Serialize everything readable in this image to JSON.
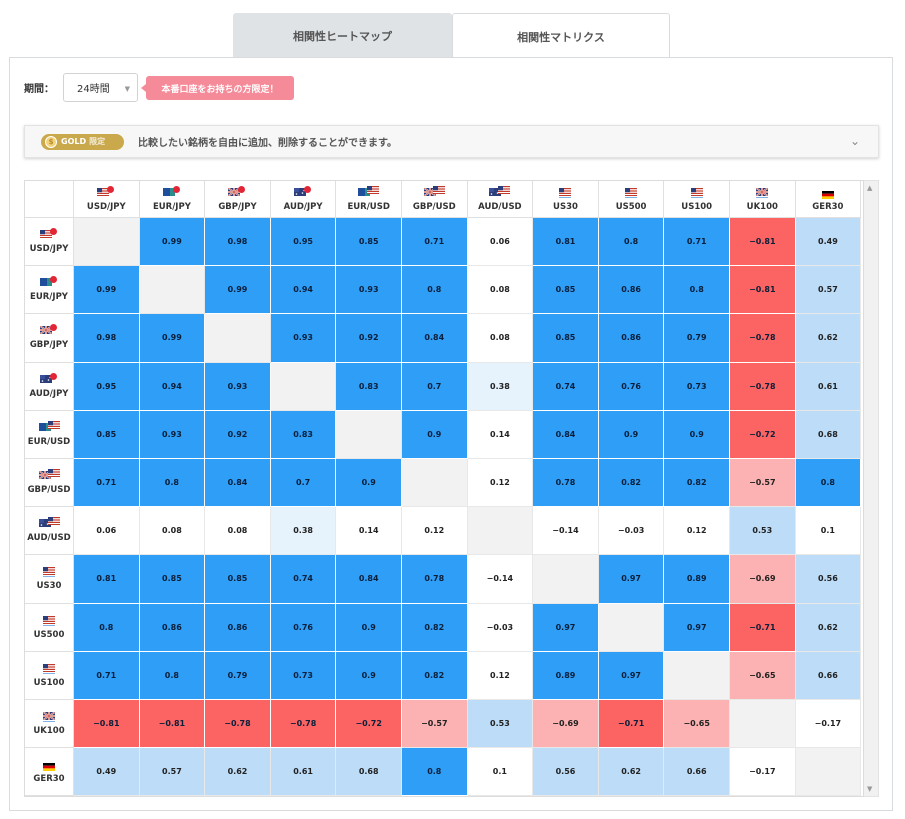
{
  "tabs": [
    {
      "label": "相関性ヒートマップ",
      "active": false
    },
    {
      "label": "相関性マトリクス",
      "active": true
    }
  ],
  "period": {
    "label": "期間：",
    "value": "24時間"
  },
  "promo": {
    "label": "本番口座をお持ちの方限定！"
  },
  "gold": {
    "badge": "GOLD",
    "badge_sub": "限定",
    "text": "比較したい銘柄を自由に追加、削除することができます。"
  },
  "colors": {
    "strong_pos": "#2f9ef7",
    "weak_pos": "#bcdcf8",
    "faint_pos": "#e6f2fc",
    "strong_neg": "#fc6464",
    "weak_neg": "#fcb2b2",
    "neutral": "#ffffff",
    "diag": "#f2f2f2"
  },
  "symbols": [
    {
      "label": "USD/JPY",
      "flag": "us-jp"
    },
    {
      "label": "EUR/JPY",
      "flag": "eu-jp"
    },
    {
      "label": "GBP/JPY",
      "flag": "uk-jp"
    },
    {
      "label": "AUD/JPY",
      "flag": "au-jp"
    },
    {
      "label": "EUR/USD",
      "flag": "eu-us"
    },
    {
      "label": "GBP/USD",
      "flag": "uk-us"
    },
    {
      "label": "AUD/USD",
      "flag": "au-us"
    },
    {
      "label": "US30",
      "flag": "us"
    },
    {
      "label": "US500",
      "flag": "us"
    },
    {
      "label": "US100",
      "flag": "us"
    },
    {
      "label": "UK100",
      "flag": "uk"
    },
    {
      "label": "GER30",
      "flag": "de"
    }
  ],
  "matrix": [
    [
      null,
      "0.99",
      "0.98",
      "0.95",
      "0.85",
      "0.71",
      "0.06",
      "0.81",
      "0.8",
      "0.71",
      "−0.81",
      "0.49"
    ],
    [
      "0.99",
      null,
      "0.99",
      "0.94",
      "0.93",
      "0.8",
      "0.08",
      "0.85",
      "0.86",
      "0.8",
      "−0.81",
      "0.57"
    ],
    [
      "0.98",
      "0.99",
      null,
      "0.93",
      "0.92",
      "0.84",
      "0.08",
      "0.85",
      "0.86",
      "0.79",
      "−0.78",
      "0.62"
    ],
    [
      "0.95",
      "0.94",
      "0.93",
      null,
      "0.83",
      "0.7",
      "0.38",
      "0.74",
      "0.76",
      "0.73",
      "−0.78",
      "0.61"
    ],
    [
      "0.85",
      "0.93",
      "0.92",
      "0.83",
      null,
      "0.9",
      "0.14",
      "0.84",
      "0.9",
      "0.9",
      "−0.72",
      "0.68"
    ],
    [
      "0.71",
      "0.8",
      "0.84",
      "0.7",
      "0.9",
      null,
      "0.12",
      "0.78",
      "0.82",
      "0.82",
      "−0.57",
      "0.8"
    ],
    [
      "0.06",
      "0.08",
      "0.08",
      "0.38",
      "0.14",
      "0.12",
      null,
      "−0.14",
      "−0.03",
      "0.12",
      "0.53",
      "0.1"
    ],
    [
      "0.81",
      "0.85",
      "0.85",
      "0.74",
      "0.84",
      "0.78",
      "−0.14",
      null,
      "0.97",
      "0.89",
      "−0.69",
      "0.56"
    ],
    [
      "0.8",
      "0.86",
      "0.86",
      "0.76",
      "0.9",
      "0.82",
      "−0.03",
      "0.97",
      null,
      "0.97",
      "−0.71",
      "0.62"
    ],
    [
      "0.71",
      "0.8",
      "0.79",
      "0.73",
      "0.9",
      "0.82",
      "0.12",
      "0.89",
      "0.97",
      null,
      "−0.65",
      "0.66"
    ],
    [
      "−0.81",
      "−0.81",
      "−0.78",
      "−0.78",
      "−0.72",
      "−0.57",
      "0.53",
      "−0.69",
      "−0.71",
      "−0.65",
      null,
      "−0.17"
    ],
    [
      "0.49",
      "0.57",
      "0.62",
      "0.61",
      "0.68",
      "0.8",
      "0.1",
      "0.56",
      "0.62",
      "0.66",
      "−0.17",
      null
    ]
  ]
}
